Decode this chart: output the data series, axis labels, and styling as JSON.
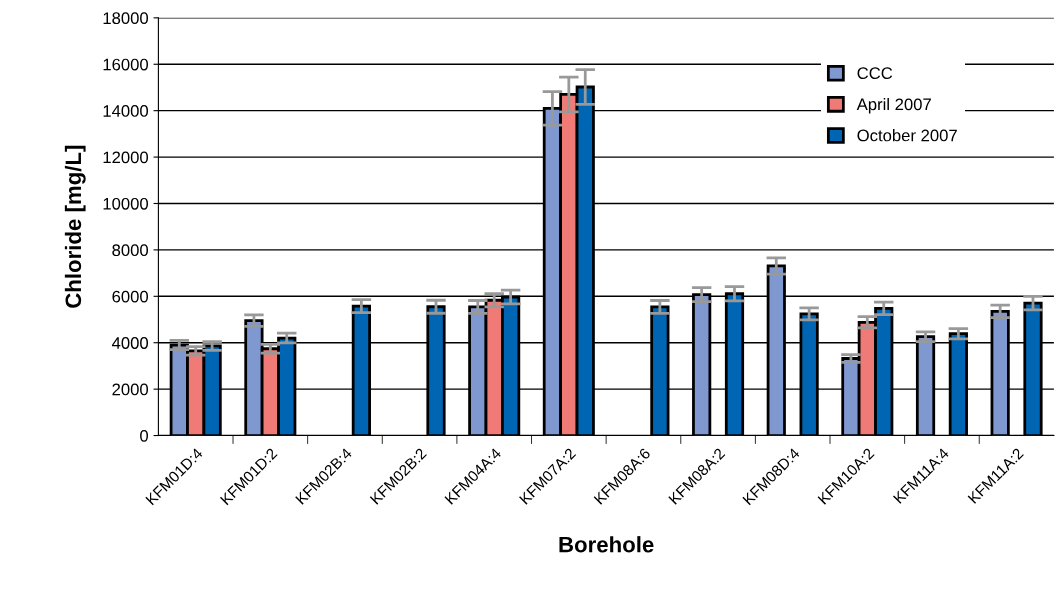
{
  "chart_data": {
    "type": "bar",
    "xlabel": "Borehole",
    "ylabel": "Chloride [mg/L]",
    "categories": [
      "KFM01D:4",
      "KFM01D:2",
      "KFM02B:4",
      "KFM02B:2",
      "KFM04A:4",
      "KFM07A:2",
      "KFM08A:6",
      "KFM08A:2",
      "KFM08D:4",
      "KFM10A:2",
      "KFM11A:4",
      "KFM11A:2"
    ],
    "series": [
      {
        "name": "CCC",
        "color": "#7f98cf",
        "values": [
          3900,
          4950,
          null,
          null,
          5540,
          14100,
          null,
          6070,
          7310,
          3320,
          4260,
          5350
        ],
        "errors": [
          200,
          250,
          null,
          null,
          280,
          720,
          null,
          300,
          350,
          170,
          210,
          270
        ]
      },
      {
        "name": "April 2007",
        "color": "#f07b76",
        "values": [
          3650,
          3740,
          null,
          null,
          5830,
          14700,
          null,
          null,
          null,
          4880,
          null,
          null
        ],
        "errors": [
          180,
          190,
          null,
          null,
          290,
          750,
          null,
          null,
          null,
          240,
          null,
          null
        ]
      },
      {
        "name": "October 2007",
        "color": "#0066b3",
        "values": [
          3860,
          4200,
          5580,
          5550,
          5970,
          15020,
          5540,
          6110,
          5240,
          5480,
          4390,
          5710
        ],
        "errors": [
          190,
          210,
          280,
          280,
          300,
          750,
          280,
          310,
          260,
          270,
          220,
          290
        ]
      }
    ],
    "ylim": [
      0,
      18000
    ],
    "yticks": [
      0,
      2000,
      4000,
      6000,
      8000,
      10000,
      12000,
      14000,
      16000,
      18000
    ],
    "grid": "y",
    "legend": "top right"
  }
}
